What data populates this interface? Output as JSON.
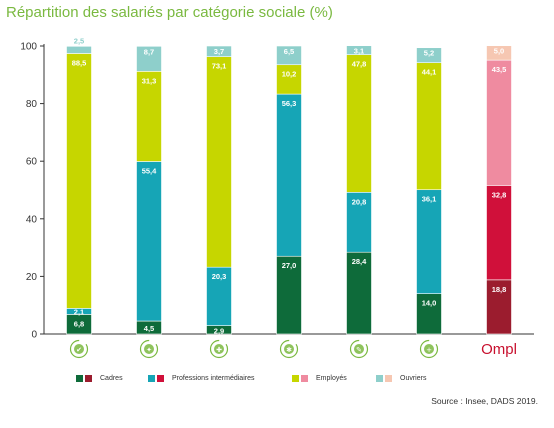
{
  "chart_data": {
    "type": "bar",
    "stacked": true,
    "title": "Répartition des salariés par catégorie sociale (%)",
    "ylim": [
      0,
      100
    ],
    "yticks": [
      "0",
      "20",
      "40",
      "60",
      "80",
      "100"
    ],
    "categories": [
      "",
      "",
      "",
      "",
      "",
      "",
      "Ompl"
    ],
    "category_icons": [
      "check-leaf-icon",
      "sector-b-icon",
      "sector-c-icon",
      "sector-d-icon",
      "sector-e-icon",
      "plus-icon",
      "ompl-logo"
    ],
    "series": [
      {
        "name": "Cadres",
        "color": "#0e6b3a",
        "alt_color": "#9b1c2e",
        "values": [
          6.8,
          4.5,
          2.9,
          27.0,
          28.4,
          14.0,
          18.8
        ]
      },
      {
        "name": "Professions intermédiaires",
        "color": "#16a5b6",
        "alt_color": "#d0103a",
        "values": [
          2.1,
          55.4,
          20.3,
          56.3,
          20.8,
          36.1,
          32.8
        ]
      },
      {
        "name": "Employés",
        "color": "#c6d600",
        "alt_color": "#ef8ba0",
        "values": [
          88.5,
          31.3,
          73.1,
          10.2,
          47.8,
          44.1,
          43.5
        ]
      },
      {
        "name": "Ouvriers",
        "color": "#8ecfcb",
        "alt_color": "#f6c7b2",
        "values": [
          2.5,
          8.7,
          3.7,
          6.5,
          3.1,
          5.2,
          5.0
        ]
      }
    ],
    "labels": [
      [
        "6,8",
        "4,5",
        "2,9",
        "27,0",
        "28,4",
        "14,0",
        "18,8"
      ],
      [
        "2,1",
        "55,4",
        "20,3",
        "56,3",
        "20,8",
        "36,1",
        "32,8"
      ],
      [
        "88,5",
        "31,3",
        "73,1",
        "10,2",
        "47,8",
        "44,1",
        "43,5"
      ],
      [
        "2,5",
        "8,7",
        "3,7",
        "6,5",
        "3,1",
        "5,2",
        "5,0"
      ]
    ],
    "legend_position": "bottom",
    "grid": false
  },
  "source": "Source : Insee, DADS 2019.",
  "colors": {
    "title": "#7ab940",
    "axis": "#333333",
    "icon": "#7ab940",
    "ompl": "#c8102e"
  }
}
